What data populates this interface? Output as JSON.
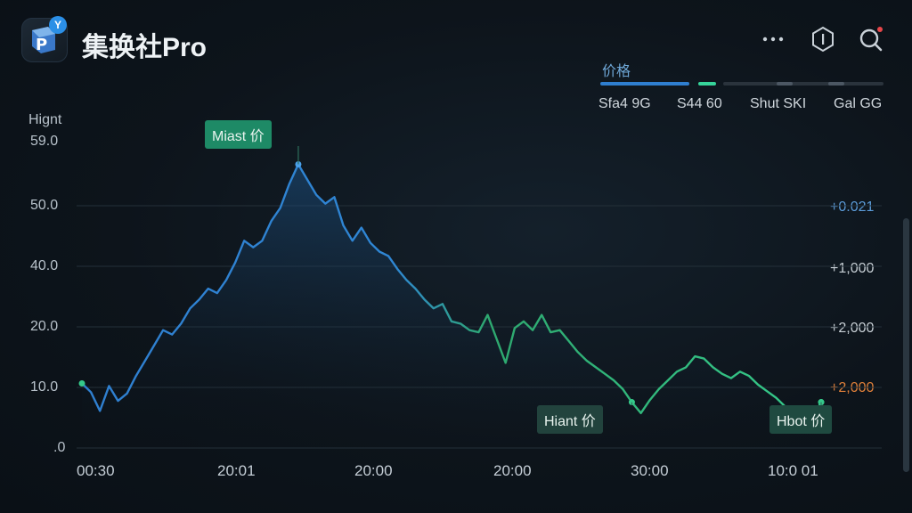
{
  "header": {
    "app_title": "集换社Pro",
    "logo_badge": "Y",
    "icons": [
      "more-icon",
      "hexagon-info-icon",
      "search-icon"
    ],
    "accent": "#2b8fe6"
  },
  "legend": {
    "title": "价格",
    "items": [
      {
        "label": "Sfa4 9G",
        "color": "#2f7fd0"
      },
      {
        "label": "S44 60",
        "color": "#36d49a"
      },
      {
        "label": "Shut SKI",
        "color": "#4c5763"
      },
      {
        "label": "Gal GG",
        "color": "#4c5763"
      }
    ]
  },
  "chart_data": {
    "type": "line",
    "ylabel": "Hignt",
    "y_ticks": [
      "59.0",
      "50.0",
      "40.0",
      "20.0",
      "10.0",
      ".0"
    ],
    "y2_ticks": [
      "+0.021",
      "+1,000",
      "+2,000",
      "+2,000"
    ],
    "x_ticks": [
      "00:30",
      "20:01",
      "20:00",
      "20:00",
      "30:00",
      "10:0 01"
    ],
    "series": [
      {
        "color_start": "#2f7fd0",
        "color_end": "#35c98a",
        "values": [
          14.8,
          12.8,
          8.5,
          14.2,
          10.8,
          12.5,
          16.5,
          20,
          23.5,
          27,
          26,
          28.5,
          32,
          34,
          36.5,
          35.5,
          38.5,
          42.5,
          47.5,
          46,
          47.5,
          52,
          55,
          60.5,
          65,
          61.5,
          58,
          56,
          57.5,
          51,
          47.5,
          50.5,
          47,
          45,
          44,
          41,
          38.5,
          36.5,
          34,
          32,
          33,
          29,
          28.5,
          27,
          26.5,
          30.5,
          25,
          19.5,
          27.5,
          29,
          27,
          30.5,
          26.5,
          27,
          24.5,
          22,
          20,
          18.5,
          17,
          15.5,
          13.5,
          10.5,
          8,
          11,
          13.5,
          15.5,
          17.5,
          18.5,
          21,
          20.5,
          18.5,
          17,
          16,
          17.5,
          16.5,
          14.5,
          13,
          11.5,
          9.5,
          8.5,
          7.5,
          6.8,
          10.5
        ]
      }
    ],
    "annotations": [
      {
        "label": "Miast 价",
        "x_index": 24,
        "style": "peak"
      },
      {
        "label": "Hiant 价",
        "x_index": 61,
        "style": "low"
      },
      {
        "label": "Hbot 价",
        "x_index": 82,
        "style": "end"
      }
    ],
    "ylim": [
      0,
      70
    ]
  }
}
